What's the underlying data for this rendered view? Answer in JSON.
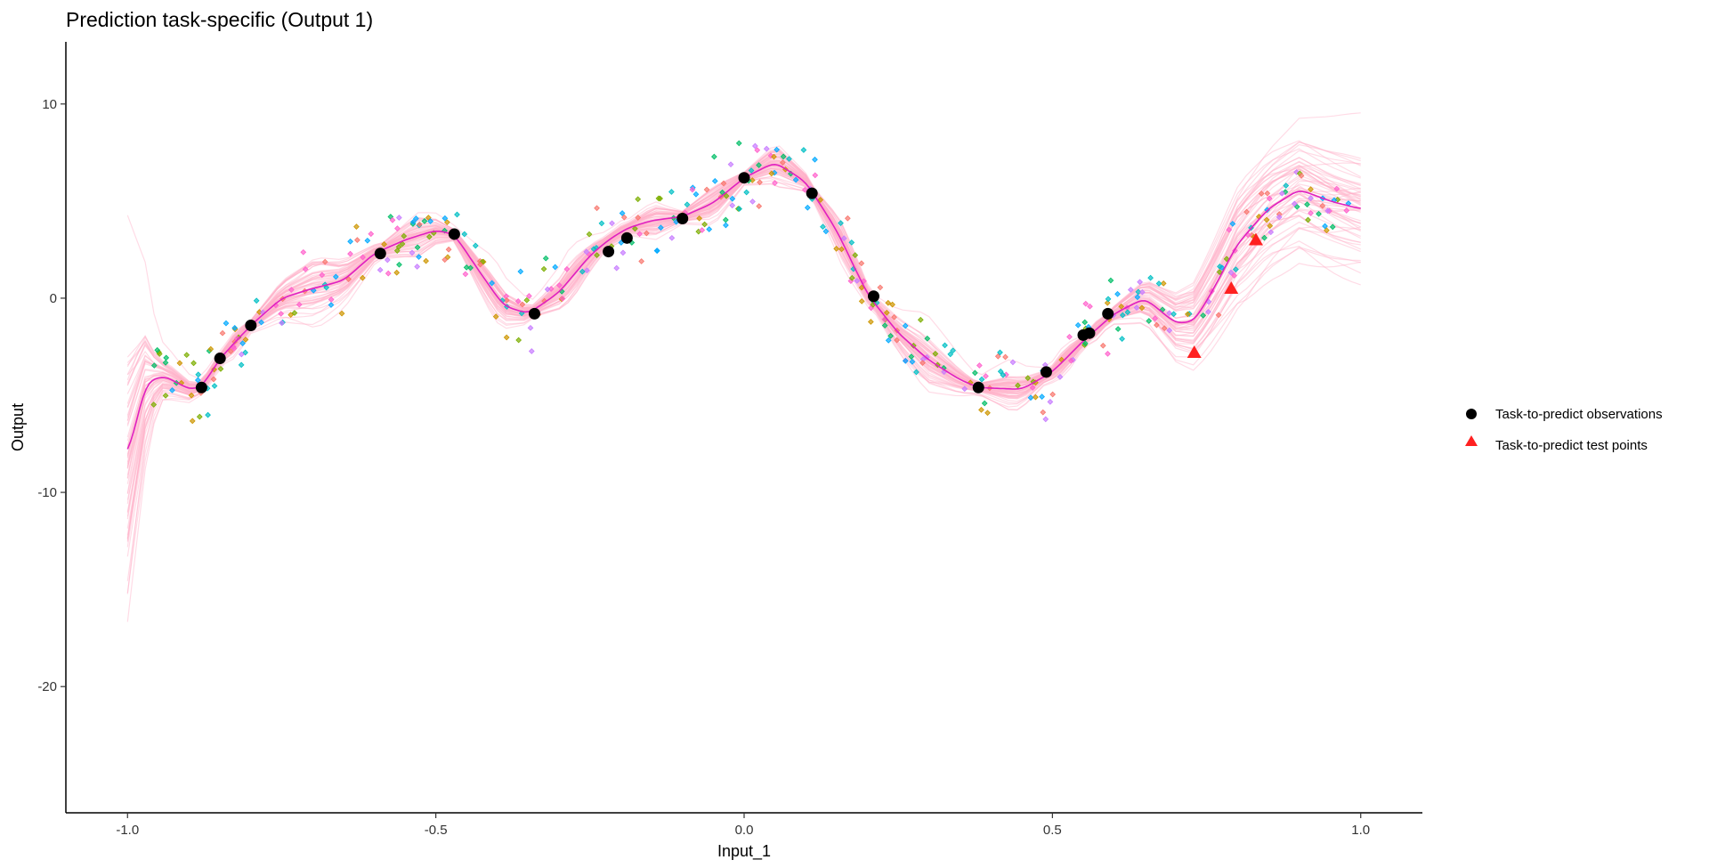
{
  "chart_data": {
    "type": "line",
    "title": "Prediction task-specific (Output 1)",
    "xlabel": "Input_1",
    "ylabel": "Output",
    "xlim": [
      -1.1,
      1.1
    ],
    "ylim": [
      -26.5,
      13.2
    ],
    "x_ticks": [
      -1.0,
      -0.5,
      0.0,
      0.5,
      1.0
    ],
    "x_tick_labels": [
      "-1.0",
      "-0.5",
      "0.0",
      "0.5",
      "1.0"
    ],
    "y_ticks": [
      -20,
      -10,
      0,
      10
    ],
    "y_tick_labels": [
      "-20",
      "-10",
      "0",
      "10"
    ],
    "grid": false,
    "legend_position": "right",
    "legend": [
      {
        "label": "Task-to-predict observations",
        "shape": "circle",
        "color": "#000000"
      },
      {
        "label": "Task-to-predict test points",
        "shape": "triangle",
        "color": "#ff2020"
      }
    ],
    "mean_curve": {
      "color": "#e020c0",
      "x": [
        -1.0,
        -0.97,
        -0.94,
        -0.9,
        -0.88,
        -0.85,
        -0.8,
        -0.75,
        -0.7,
        -0.65,
        -0.6,
        -0.55,
        -0.5,
        -0.47,
        -0.43,
        -0.39,
        -0.35,
        -0.3,
        -0.25,
        -0.22,
        -0.19,
        -0.15,
        -0.1,
        -0.05,
        0.0,
        0.05,
        0.1,
        0.15,
        0.2,
        0.25,
        0.3,
        0.35,
        0.38,
        0.45,
        0.5,
        0.55,
        0.6,
        0.65,
        0.7,
        0.73,
        0.76,
        0.8,
        0.85,
        0.9,
        0.95,
        1.0
      ],
      "y": [
        -8.2,
        -4.3,
        -4.0,
        -4.7,
        -4.6,
        -3.1,
        -1.4,
        0.0,
        0.5,
        0.9,
        2.3,
        3.0,
        3.5,
        3.3,
        1.4,
        -0.4,
        -0.8,
        0.3,
        2.2,
        3.0,
        3.6,
        4.0,
        4.2,
        4.9,
        6.2,
        7.0,
        6.0,
        3.5,
        0.2,
        -1.8,
        -3.2,
        -4.2,
        -4.6,
        -4.7,
        -3.8,
        -2.2,
        -0.8,
        0.0,
        -1.3,
        -1.2,
        0.4,
        2.8,
        4.6,
        5.6,
        5.0,
        4.6
      ]
    },
    "observations": {
      "name": "Task-to-predict observations",
      "x": [
        -0.88,
        -0.85,
        -0.8,
        -0.59,
        -0.47,
        -0.34,
        -0.22,
        -0.19,
        -0.1,
        0.0,
        0.11,
        0.21,
        0.38,
        0.49,
        0.55,
        0.56,
        0.59
      ],
      "y": [
        -4.6,
        -3.1,
        -1.4,
        2.3,
        3.3,
        -0.8,
        2.4,
        3.1,
        4.1,
        6.2,
        5.4,
        0.1,
        -4.6,
        -3.8,
        -1.9,
        -1.8,
        -0.8
      ]
    },
    "test_points": {
      "name": "Task-to-predict test points",
      "x": [
        0.73,
        0.79,
        0.83
      ],
      "y": [
        -2.8,
        0.5,
        3.0
      ]
    },
    "sample_band": {
      "color": "#ffb0c8",
      "samples": 60,
      "x_extent": [
        -1.0,
        1.0
      ],
      "min_y": -25.0,
      "max_y": 11.5
    },
    "other_tasks_palette": [
      "#f8766d",
      "#cd9600",
      "#7cae00",
      "#00be67",
      "#00bfc4",
      "#00a9ff",
      "#c77cff",
      "#ff61cc"
    ]
  }
}
